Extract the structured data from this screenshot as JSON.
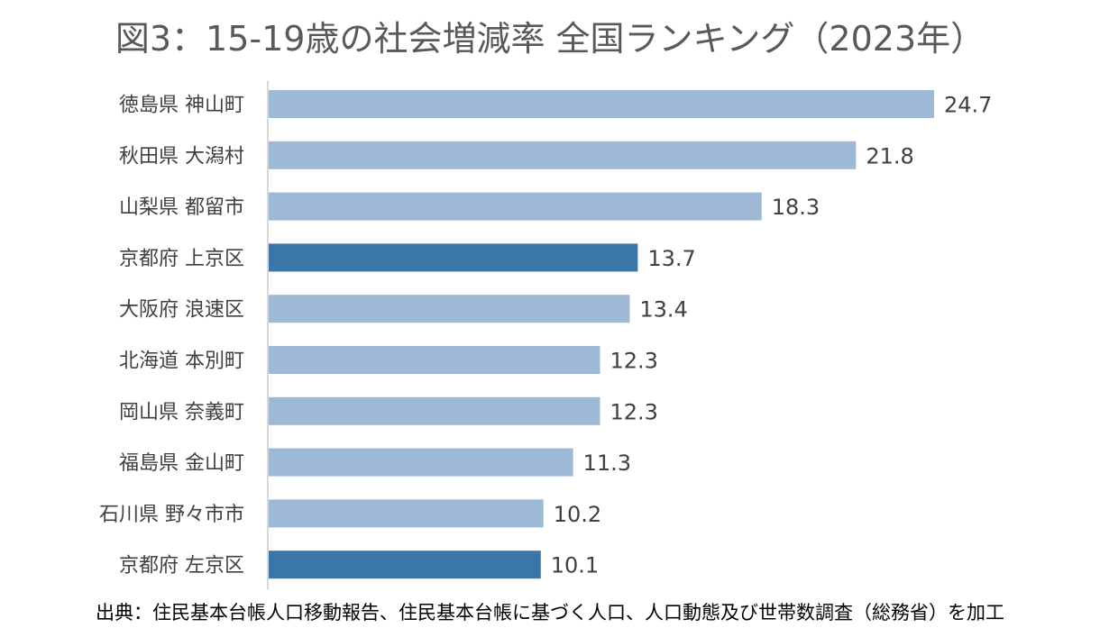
{
  "title": "図3：15-19歳の社会増減率 全国ランキング（2023年）",
  "source": "出典：住民基本台帳人口移動報告、住民基本台帳に基づく人口、人口動態及び世帯数調査（総務省）を加工",
  "colors": {
    "default_bar": "#9db9d5",
    "highlight_bar": "#3b76a8",
    "axis": "#bfbfbf",
    "text": "#404040"
  },
  "chart_data": {
    "type": "bar",
    "orientation": "horizontal",
    "title": "図3：15-19歳の社会増減率 全国ランキング（2023年）",
    "categories": [
      "徳島県 神山町",
      "秋田県 大潟村",
      "山梨県 都留市",
      "京都府 上京区",
      "大阪府 浪速区",
      "北海道 本別町",
      "岡山県 奈義町",
      "福島県 金山町",
      "石川県 野々市市",
      "京都府 左京区"
    ],
    "values": [
      24.7,
      21.8,
      18.3,
      13.7,
      13.4,
      12.3,
      12.3,
      11.3,
      10.2,
      10.1
    ],
    "data_labels": [
      "24.7",
      "21.8",
      "18.3",
      "13.7",
      "13.4",
      "12.3",
      "12.3",
      "11.3",
      "10.2",
      "10.1"
    ],
    "highlighted": [
      "京都府 上京区",
      "京都府 左京区"
    ],
    "xlim": [
      0,
      24.7
    ],
    "grid": false,
    "legend": "none"
  }
}
